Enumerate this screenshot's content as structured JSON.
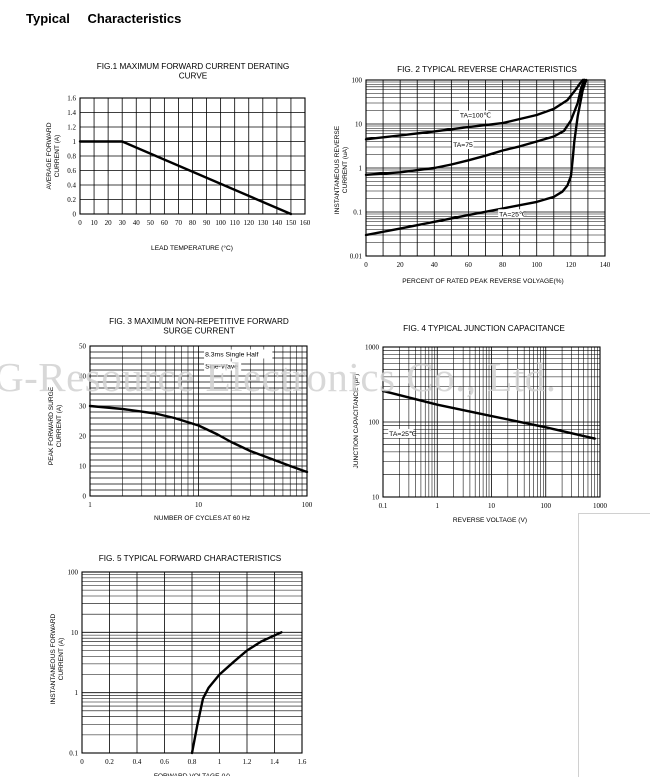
{
  "page": {
    "title": "Typical    Characteristics",
    "watermark": "G-Resource Electronics Co., Ltd."
  },
  "chart_data": [
    {
      "id": "fig1",
      "type": "line",
      "title_lines": [
        "FIG.1 MAXIMUM FORWARD CURRENT DERATING",
        "CURVE"
      ],
      "xlabel": "LEAD TEMPERATURE (°C)",
      "ylabel_lines": [
        "AVERAGE FORWARD",
        "CURRENT (A)"
      ],
      "xlim": [
        0,
        160
      ],
      "ylim": [
        0,
        1.6
      ],
      "xscale": "linear",
      "yscale": "linear",
      "xticks": [
        "0",
        "10",
        "20",
        "30",
        "40",
        "50",
        "60",
        "70",
        "80",
        "90",
        "100",
        "110",
        "120",
        "130",
        "140",
        "150",
        "160"
      ],
      "yticks": [
        "0",
        "0.2",
        "0.4",
        "0.6",
        "0.8",
        "1",
        "1.2",
        "1.4",
        "1.6"
      ],
      "grid": true,
      "series": [
        {
          "x": [
            0,
            30,
            150
          ],
          "y": [
            1.0,
            1.0,
            0
          ]
        }
      ],
      "annotations": []
    },
    {
      "id": "fig2",
      "type": "line",
      "title_lines": [
        "FIG. 2 TYPICAL REVERSE CHARACTERISTICS"
      ],
      "xlabel": "PERCENT OF RATED PEAK REVERSE VOLYAGE(%)",
      "ylabel_lines": [
        "INSTANTANEOUS REVERSE",
        "CURRENT (uA)"
      ],
      "xlim": [
        0,
        140
      ],
      "ylim": [
        0.01,
        100
      ],
      "xscale": "linear",
      "yscale": "log",
      "xticks": [
        "0",
        "20",
        "40",
        "60",
        "80",
        "100",
        "120",
        "140"
      ],
      "yticks": [
        "0.01",
        "0.1",
        "1",
        "10",
        "100"
      ],
      "grid": true,
      "series": [
        {
          "x": [
            0,
            20,
            40,
            60,
            80,
            100,
            110,
            118,
            122,
            125,
            127,
            128
          ],
          "y": [
            4.5,
            5.5,
            6.8,
            8.5,
            10.5,
            16,
            22,
            35,
            55,
            80,
            100,
            100
          ]
        },
        {
          "x": [
            0,
            20,
            40,
            50,
            60,
            70,
            80,
            90,
            100,
            110,
            116,
            120,
            124,
            126,
            128
          ],
          "y": [
            0.7,
            0.8,
            1.0,
            1.2,
            1.5,
            1.9,
            2.5,
            3.1,
            4.0,
            5.2,
            7,
            12,
            30,
            65,
            100
          ]
        },
        {
          "x": [
            0,
            20,
            40,
            60,
            80,
            100,
            110,
            115,
            118,
            120,
            121,
            122,
            124,
            127,
            129
          ],
          "y": [
            0.03,
            0.042,
            0.06,
            0.085,
            0.12,
            0.17,
            0.22,
            0.29,
            0.4,
            0.65,
            1.5,
            4,
            15,
            60,
            100
          ]
        }
      ],
      "annotations": [
        {
          "text": "TA=100℃",
          "x": 55,
          "y": 14
        },
        {
          "text": "TA=75",
          "x": 51,
          "y": 3.0
        },
        {
          "text": "TA=25℃",
          "x": 78,
          "y": 0.08
        }
      ]
    },
    {
      "id": "fig3",
      "type": "line",
      "title_lines": [
        "FIG. 3 MAXIMUM  NON-REPETITIVE FORWARD",
        "SURGE CURRENT"
      ],
      "xlabel": "NUMBER OF CYCLES AT 60 Hz",
      "ylabel_lines": [
        "PEAK FORWARD SURGE",
        "CURRENT (A)"
      ],
      "xlim": [
        1,
        100
      ],
      "ylim": [
        0,
        50
      ],
      "xscale": "log",
      "yscale": "linear",
      "xticks": [
        "1",
        "10",
        "100"
      ],
      "yticks": [
        "0",
        "10",
        "20",
        "30",
        "40",
        "50"
      ],
      "grid": true,
      "series": [
        {
          "x": [
            1,
            2,
            4,
            6,
            10,
            15,
            20,
            30,
            50,
            70,
            100
          ],
          "y": [
            30,
            29,
            27.5,
            26,
            23.5,
            20.5,
            18,
            15,
            12,
            10,
            8
          ]
        }
      ],
      "annotations": [
        {
          "text": "8.3ms Single Half",
          "x": 11.5,
          "y": 46.5
        },
        {
          "text": "Sine-Wave",
          "x": 11.5,
          "y": 42.5
        }
      ]
    },
    {
      "id": "fig4",
      "type": "line",
      "title_lines": [
        "FIG. 4 TYPICAL JUNCTION CAPACITANCE"
      ],
      "xlabel": "REVERSE VOLTAGE (V)",
      "ylabel_lines": [
        "JUNCTION CAPACITANCE (pF)"
      ],
      "xlim": [
        0.1,
        1000
      ],
      "ylim": [
        10,
        1000
      ],
      "xscale": "log",
      "yscale": "log",
      "xticks": [
        "0.1",
        "1",
        "10",
        "100",
        "1000"
      ],
      "yticks": [
        "10",
        "100",
        "1000"
      ],
      "grid": true,
      "series": [
        {
          "x": [
            0.1,
            1,
            10,
            100,
            800
          ],
          "y": [
            260,
            170,
            120,
            85,
            60
          ]
        }
      ],
      "annotations": [
        {
          "text": "TA=25℃",
          "x": 0.13,
          "y": 65
        }
      ]
    },
    {
      "id": "fig5",
      "type": "line",
      "title_lines": [
        "FIG. 5 TYPICAL FORWARD CHARACTERISTICS"
      ],
      "xlabel": "FORWARD VOLTAGE (V)",
      "ylabel_lines": [
        "INSTANTANEOUS FORWARD",
        "CURRENT (A)"
      ],
      "xlim": [
        0,
        1.6
      ],
      "ylim": [
        0.1,
        100
      ],
      "xscale": "linear",
      "yscale": "log",
      "xticks": [
        "0",
        "0.2",
        "0.4",
        "0.6",
        "0.8",
        "1",
        "1.2",
        "1.4",
        "1.6"
      ],
      "yticks": [
        "0.1",
        "1",
        "10",
        "100"
      ],
      "grid": true,
      "series": [
        {
          "x": [
            0.8,
            0.84,
            0.88,
            0.92,
            1.0,
            1.1,
            1.2,
            1.3,
            1.45
          ],
          "y": [
            0.1,
            0.3,
            0.8,
            1.2,
            2.0,
            3.2,
            5.0,
            7.0,
            10
          ]
        }
      ],
      "annotations": []
    }
  ]
}
